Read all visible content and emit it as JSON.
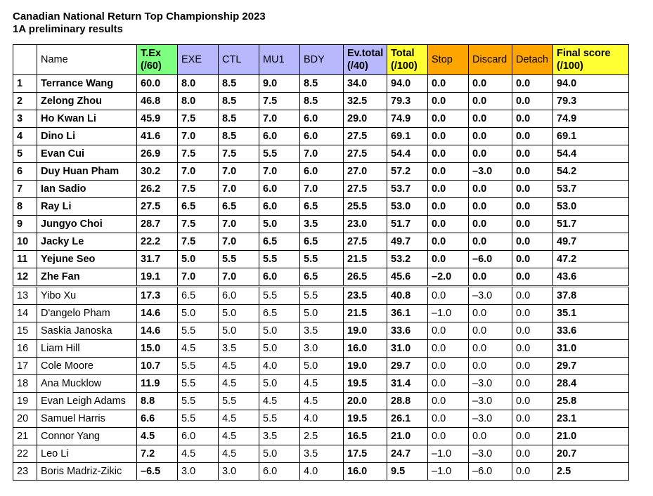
{
  "title": {
    "line1": "Canadian National Return Top Championship 2023",
    "line2": "1A preliminary results"
  },
  "colors": {
    "tex": "#7fff7f",
    "exe_group": "#b8b8ff",
    "total_group": "#ffff33",
    "deductions": "#ffa500"
  },
  "headers": [
    "",
    "Name",
    "T.Ex (/60)",
    "EXE",
    "CTL",
    "MU1",
    "BDY",
    "Ev.total (/40)",
    "Total (/100)",
    "Stop",
    "Discard",
    "Detach",
    "Final score (/100)"
  ],
  "rows": [
    [
      "1",
      "Terrance Wang",
      "60.0",
      "8.0",
      "8.5",
      "9.0",
      "8.5",
      "34.0",
      "94.0",
      "0.0",
      "0.0",
      "0.0",
      "94.0"
    ],
    [
      "2",
      "Zelong Zhou",
      "46.8",
      "8.0",
      "8.5",
      "7.5",
      "8.5",
      "32.5",
      "79.3",
      "0.0",
      "0.0",
      "0.0",
      "79.3"
    ],
    [
      "3",
      "Ho Kwan Li",
      "45.9",
      "7.5",
      "8.5",
      "7.0",
      "6.0",
      "29.0",
      "74.9",
      "0.0",
      "0.0",
      "0.0",
      "74.9"
    ],
    [
      "4",
      "Dino Li",
      "41.6",
      "7.0",
      "8.5",
      "6.0",
      "6.0",
      "27.5",
      "69.1",
      "0.0",
      "0.0",
      "0.0",
      "69.1"
    ],
    [
      "5",
      "Evan Cui",
      "26.9",
      "7.5",
      "7.5",
      "5.5",
      "7.0",
      "27.5",
      "54.4",
      "0.0",
      "0.0",
      "0.0",
      "54.4"
    ],
    [
      "6",
      "Duy Huan Pham",
      "30.2",
      "7.0",
      "7.0",
      "7.0",
      "6.0",
      "27.0",
      "57.2",
      "0.0",
      "–3.0",
      "0.0",
      "54.2"
    ],
    [
      "7",
      "Ian Sadio",
      "26.2",
      "7.5",
      "7.0",
      "6.0",
      "7.0",
      "27.5",
      "53.7",
      "0.0",
      "0.0",
      "0.0",
      "53.7"
    ],
    [
      "8",
      "Ray Li",
      "27.5",
      "6.5",
      "6.5",
      "6.0",
      "6.5",
      "25.5",
      "53.0",
      "0.0",
      "0.0",
      "0.0",
      "53.0"
    ],
    [
      "9",
      "Jungyo Choi",
      "28.7",
      "7.5",
      "7.0",
      "5.0",
      "3.5",
      "23.0",
      "51.7",
      "0.0",
      "0.0",
      "0.0",
      "51.7"
    ],
    [
      "10",
      "Jacky Le",
      "22.2",
      "7.5",
      "7.0",
      "6.5",
      "6.5",
      "27.5",
      "49.7",
      "0.0",
      "0.0",
      "0.0",
      "49.7"
    ],
    [
      "11",
      "Yejune Seo",
      "31.7",
      "5.0",
      "5.5",
      "5.5",
      "5.5",
      "21.5",
      "53.2",
      "0.0",
      "–6.0",
      "0.0",
      "47.2"
    ],
    [
      "12",
      "Zhe Fan",
      "19.1",
      "7.0",
      "7.0",
      "6.0",
      "6.5",
      "26.5",
      "45.6",
      "–2.0",
      "0.0",
      "0.0",
      "43.6"
    ],
    [
      "13",
      "Yibo Xu",
      "17.3",
      "6.5",
      "6.0",
      "5.5",
      "5.5",
      "23.5",
      "40.8",
      "0.0",
      "–3.0",
      "0.0",
      "37.8"
    ],
    [
      "14",
      "D'angelo Pham",
      "14.6",
      "5.0",
      "5.0",
      "6.5",
      "5.0",
      "21.5",
      "36.1",
      "–1.0",
      "0.0",
      "0.0",
      "35.1"
    ],
    [
      "15",
      "Saskia Janoska",
      "14.6",
      "5.5",
      "5.0",
      "5.0",
      "3.5",
      "19.0",
      "33.6",
      "0.0",
      "0.0",
      "0.0",
      "33.6"
    ],
    [
      "16",
      "Liam Hill",
      "15.0",
      "4.5",
      "3.5",
      "5.0",
      "3.0",
      "16.0",
      "31.0",
      "0.0",
      "0.0",
      "0.0",
      "31.0"
    ],
    [
      "17",
      "Cole Moore",
      "10.7",
      "5.5",
      "4.5",
      "4.0",
      "5.0",
      "19.0",
      "29.7",
      "0.0",
      "0.0",
      "0.0",
      "29.7"
    ],
    [
      "18",
      "Ana Mucklow",
      "11.9",
      "5.5",
      "4.5",
      "5.0",
      "4.5",
      "19.5",
      "31.4",
      "0.0",
      "–3.0",
      "0.0",
      "28.4"
    ],
    [
      "19",
      "Evan Leigh Adams",
      "8.8",
      "5.5",
      "5.5",
      "4.5",
      "4.5",
      "20.0",
      "28.8",
      "0.0",
      "–3.0",
      "0.0",
      "25.8"
    ],
    [
      "20",
      "Samuel Harris",
      "6.6",
      "5.5",
      "4.5",
      "5.5",
      "4.0",
      "19.5",
      "26.1",
      "0.0",
      "–3.0",
      "0.0",
      "23.1"
    ],
    [
      "21",
      "Connor Yang",
      "4.5",
      "6.0",
      "4.5",
      "3.5",
      "2.5",
      "16.5",
      "21.0",
      "0.0",
      "0.0",
      "0.0",
      "21.0"
    ],
    [
      "22",
      "Leo Li",
      "7.2",
      "4.5",
      "4.5",
      "5.0",
      "3.5",
      "17.5",
      "24.7",
      "–1.0",
      "–3.0",
      "0.0",
      "20.7"
    ],
    [
      "23",
      "Boris Madriz-Zikic",
      "–6.5",
      "3.0",
      "3.0",
      "6.0",
      "4.0",
      "16.0",
      "9.5",
      "–1.0",
      "–6.0",
      "0.0",
      "2.5"
    ]
  ]
}
